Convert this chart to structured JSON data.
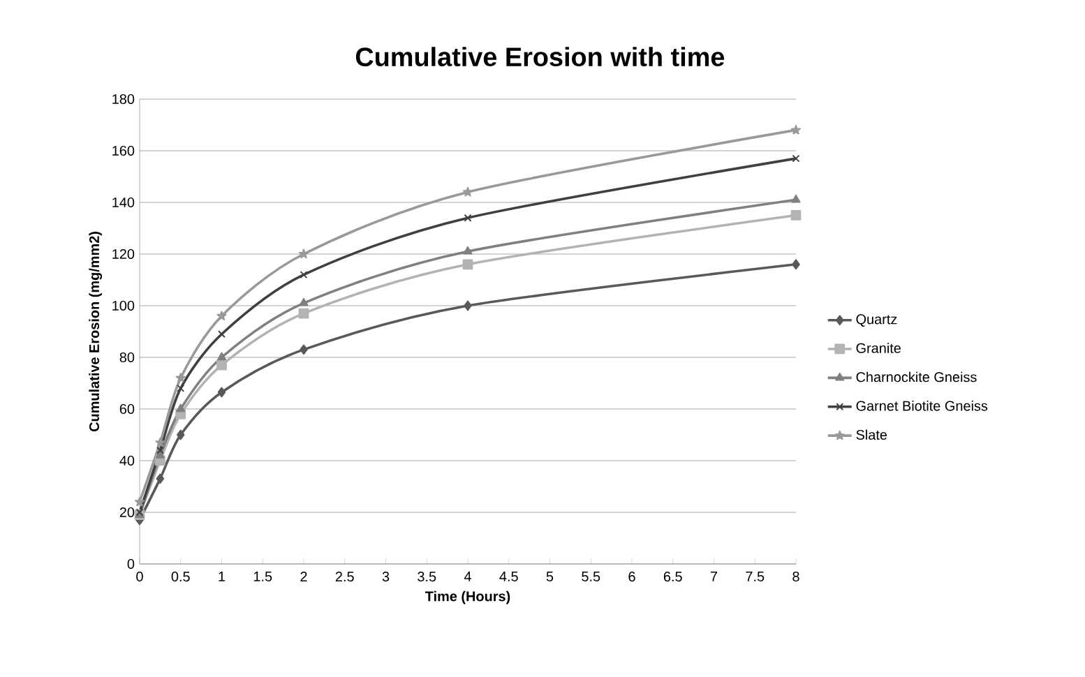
{
  "chart_data": {
    "type": "line",
    "title": "Cumulative Erosion with time",
    "xlabel": "Time (Hours)",
    "ylabel": "Cumulative Erosion (mg/mm2)",
    "x": [
      0,
      0.25,
      0.5,
      1,
      2,
      4,
      8
    ],
    "series": [
      {
        "name": "Quartz",
        "color": "#595959",
        "marker": "diamond",
        "values": [
          17,
          33,
          50,
          66.5,
          83,
          100,
          116
        ]
      },
      {
        "name": "Granite",
        "color": "#b3b3b3",
        "marker": "square",
        "values": [
          19,
          40,
          58,
          77,
          97,
          116,
          135
        ]
      },
      {
        "name": "Charnockite Gneiss",
        "color": "#808080",
        "marker": "triangle",
        "values": [
          19,
          42,
          60,
          80,
          101,
          121,
          141
        ]
      },
      {
        "name": "Garnet Biotite Gneiss",
        "color": "#404040",
        "marker": "cross",
        "values": [
          20,
          44,
          68,
          89,
          112,
          134,
          157
        ]
      },
      {
        "name": "Slate",
        "color": "#999999",
        "marker": "star",
        "values": [
          24,
          47,
          72,
          96,
          120,
          144,
          168
        ]
      }
    ],
    "xlim": [
      0,
      8
    ],
    "xticks": [
      0,
      0.5,
      1,
      1.5,
      2,
      2.5,
      3,
      3.5,
      4,
      4.5,
      5,
      5.5,
      6,
      6.5,
      7,
      7.5,
      8
    ],
    "ylim": [
      0,
      180
    ],
    "yticks": [
      0,
      20,
      40,
      60,
      80,
      100,
      120,
      140,
      160,
      180
    ],
    "grid": "y",
    "legend": "right",
    "line_style": "solid"
  }
}
